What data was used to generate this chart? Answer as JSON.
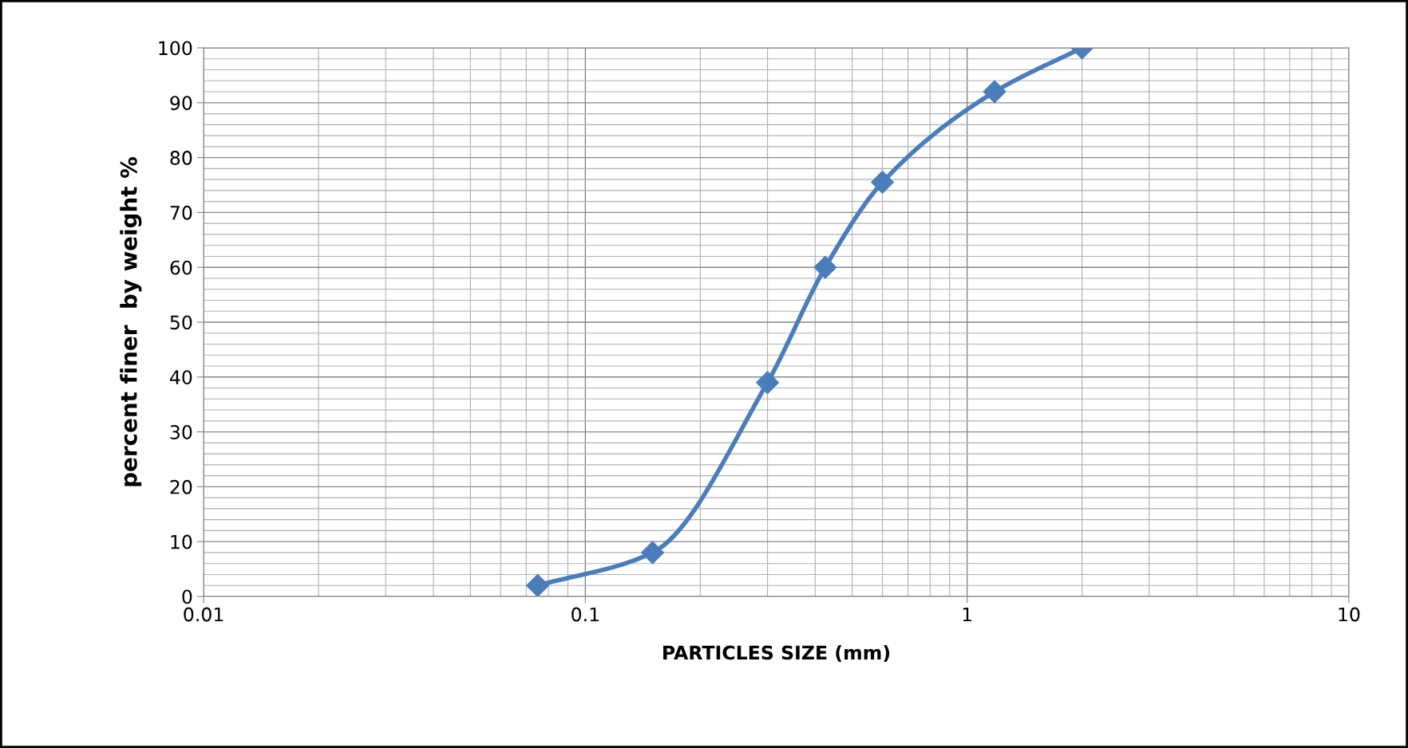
{
  "chart_data": {
    "type": "line",
    "xlabel": "PARTICLES SIZE (mm)",
    "ylabel": "percent finer  by weight %",
    "x": [
      0.075,
      0.15,
      0.3,
      0.425,
      0.6,
      1.18,
      2
    ],
    "series": [
      {
        "color": "#4a7ebb",
        "values": [
          2,
          8,
          39,
          60,
          75.5,
          92,
          100
        ]
      }
    ],
    "log": "x",
    "xlim": [
      0.01,
      10
    ],
    "xticks": [
      0.01,
      0.1,
      1,
      10
    ],
    "ylim": [
      0,
      100
    ],
    "yticks": [
      0,
      10,
      20,
      30,
      40,
      50,
      60,
      70,
      80,
      90,
      100
    ],
    "grid": true,
    "marker": "diamond",
    "line_style": "solid"
  }
}
